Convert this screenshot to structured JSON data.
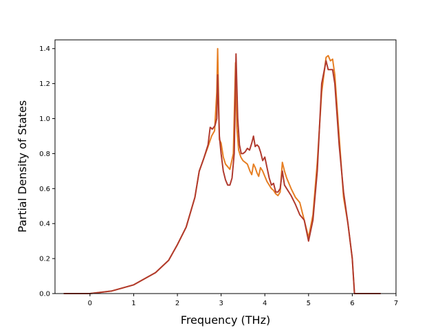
{
  "chart_data": {
    "type": "line",
    "title": "",
    "xlabel": "Frequency (THz)",
    "ylabel": "Partial Density of States",
    "xlim": [
      -0.8,
      7.0
    ],
    "ylim": [
      0.0,
      1.45
    ],
    "xticks": [
      "0",
      "1",
      "2",
      "3",
      "4",
      "5",
      "6",
      "7"
    ],
    "yticks": [
      "0.0",
      "0.2",
      "0.4",
      "0.6",
      "0.8",
      "1.0",
      "1.2",
      "1.4"
    ],
    "grid": false,
    "legend": "none",
    "series": [
      {
        "color": "#e67e22",
        "x": [
          -0.6,
          0.0,
          0.5,
          1.0,
          1.5,
          1.8,
          2.0,
          2.2,
          2.4,
          2.5,
          2.6,
          2.7,
          2.78,
          2.85,
          2.9,
          2.92,
          2.96,
          3.0,
          3.05,
          3.1,
          3.2,
          3.28,
          3.33,
          3.36,
          3.4,
          3.45,
          3.5,
          3.6,
          3.66,
          3.7,
          3.74,
          3.78,
          3.82,
          3.86,
          3.9,
          3.95,
          4.0,
          4.05,
          4.1,
          4.15,
          4.2,
          4.25,
          4.3,
          4.35,
          4.4,
          4.45,
          4.5,
          4.6,
          4.7,
          4.8,
          4.9,
          5.0,
          5.1,
          5.2,
          5.3,
          5.4,
          5.45,
          5.5,
          5.55,
          5.6,
          5.7,
          5.8,
          5.9,
          6.0,
          6.05,
          6.1,
          6.3,
          6.65
        ],
        "y": [
          0.0,
          0.0,
          0.015,
          0.05,
          0.12,
          0.19,
          0.28,
          0.38,
          0.55,
          0.7,
          0.77,
          0.84,
          0.9,
          0.93,
          1.15,
          1.4,
          0.88,
          0.86,
          0.78,
          0.74,
          0.71,
          0.8,
          1.32,
          0.95,
          0.82,
          0.78,
          0.76,
          0.74,
          0.7,
          0.68,
          0.74,
          0.72,
          0.69,
          0.67,
          0.72,
          0.7,
          0.67,
          0.64,
          0.62,
          0.6,
          0.59,
          0.57,
          0.56,
          0.58,
          0.75,
          0.7,
          0.66,
          0.6,
          0.55,
          0.52,
          0.42,
          0.32,
          0.45,
          0.75,
          1.15,
          1.35,
          1.36,
          1.33,
          1.34,
          1.25,
          0.9,
          0.55,
          0.4,
          0.2,
          0.0,
          0.0,
          0.0,
          0.0
        ]
      },
      {
        "color": "#b03a2e",
        "x": [
          -0.6,
          0.0,
          0.5,
          1.0,
          1.5,
          1.8,
          2.0,
          2.2,
          2.4,
          2.5,
          2.6,
          2.7,
          2.75,
          2.8,
          2.86,
          2.9,
          2.92,
          2.96,
          3.0,
          3.05,
          3.1,
          3.15,
          3.2,
          3.25,
          3.3,
          3.34,
          3.38,
          3.42,
          3.46,
          3.5,
          3.55,
          3.6,
          3.65,
          3.7,
          3.74,
          3.78,
          3.82,
          3.86,
          3.9,
          3.95,
          4.0,
          4.05,
          4.1,
          4.15,
          4.2,
          4.25,
          4.3,
          4.35,
          4.4,
          4.45,
          4.5,
          4.6,
          4.7,
          4.8,
          4.9,
          5.0,
          5.1,
          5.2,
          5.3,
          5.4,
          5.45,
          5.5,
          5.55,
          5.6,
          5.7,
          5.8,
          5.9,
          6.0,
          6.05,
          6.1,
          6.3,
          6.65
        ],
        "y": [
          0.0,
          0.0,
          0.015,
          0.05,
          0.12,
          0.19,
          0.28,
          0.38,
          0.55,
          0.7,
          0.77,
          0.85,
          0.95,
          0.94,
          0.96,
          1.0,
          1.25,
          0.9,
          0.8,
          0.7,
          0.65,
          0.62,
          0.62,
          0.66,
          0.8,
          1.37,
          1.0,
          0.85,
          0.8,
          0.8,
          0.81,
          0.83,
          0.82,
          0.86,
          0.9,
          0.84,
          0.85,
          0.84,
          0.81,
          0.76,
          0.78,
          0.72,
          0.66,
          0.62,
          0.63,
          0.58,
          0.58,
          0.6,
          0.7,
          0.62,
          0.6,
          0.56,
          0.51,
          0.45,
          0.42,
          0.3,
          0.42,
          0.7,
          1.2,
          1.33,
          1.28,
          1.28,
          1.28,
          1.2,
          0.85,
          0.58,
          0.4,
          0.2,
          0.0,
          0.0,
          0.0,
          0.0
        ]
      }
    ]
  }
}
